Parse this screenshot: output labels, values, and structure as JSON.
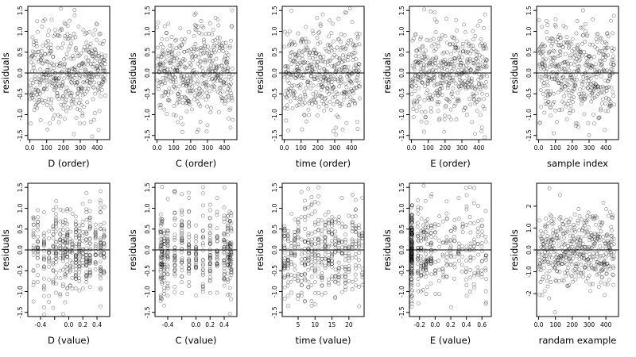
{
  "chart_data": [
    {
      "type": "scatter",
      "xlabel": "D (order)",
      "ylabel": "residuals",
      "xlim": [
        -12,
        475
      ],
      "ylim": [
        -1.6,
        1.6
      ],
      "xticks": [
        0,
        100,
        200,
        300,
        400
      ],
      "yticks": [
        -1.5,
        -1.0,
        -0.5,
        0.0,
        0.5,
        1.0,
        1.5
      ],
      "reference_line": 0,
      "pattern": "order",
      "n": 450,
      "seed": 11
    },
    {
      "type": "scatter",
      "xlabel": "C (order)",
      "ylabel": "residuals",
      "xlim": [
        -12,
        475
      ],
      "ylim": [
        -1.6,
        1.6
      ],
      "xticks": [
        0,
        100,
        200,
        300,
        400
      ],
      "yticks": [
        -1.5,
        -1.0,
        -0.5,
        0.0,
        0.5,
        1.0,
        1.5
      ],
      "reference_line": 0,
      "pattern": "order",
      "n": 450,
      "seed": 23
    },
    {
      "type": "scatter",
      "xlabel": "time (order)",
      "ylabel": "residuals",
      "xlim": [
        -12,
        475
      ],
      "ylim": [
        -1.6,
        1.6
      ],
      "xticks": [
        0,
        100,
        200,
        300,
        400
      ],
      "yticks": [
        -1.5,
        -1.0,
        -0.5,
        0.0,
        0.5,
        1.0,
        1.5
      ],
      "reference_line": 0,
      "pattern": "order",
      "n": 450,
      "seed": 37
    },
    {
      "type": "scatter",
      "xlabel": "E (order)",
      "ylabel": "residuals",
      "xlim": [
        -12,
        475
      ],
      "ylim": [
        -1.6,
        1.6
      ],
      "xticks": [
        0,
        100,
        200,
        300,
        400
      ],
      "yticks": [
        -1.5,
        -1.0,
        -0.5,
        0.0,
        0.5,
        1.0,
        1.5
      ],
      "reference_line": 0,
      "pattern": "order",
      "n": 450,
      "seed": 41
    },
    {
      "type": "scatter",
      "xlabel": "sample index",
      "ylabel": "residuals",
      "xlim": [
        -12,
        475
      ],
      "ylim": [
        -1.6,
        1.6
      ],
      "xticks": [
        0,
        100,
        200,
        300,
        400
      ],
      "yticks": [
        -1.5,
        -1.0,
        -0.5,
        0.0,
        0.5,
        1.0,
        1.5
      ],
      "reference_line": 0,
      "pattern": "order",
      "n": 450,
      "seed": 53
    },
    {
      "type": "scatter",
      "xlabel": "D (value)",
      "ylabel": "residuals",
      "xlim": [
        -0.58,
        0.58
      ],
      "ylim": [
        -1.6,
        1.6
      ],
      "xticks": [
        -0.4,
        -0.2,
        0.0,
        0.2,
        0.4
      ],
      "xtick_labels": [
        "-0.4",
        "",
        "0.0",
        "0.2",
        "0.4"
      ],
      "yticks": [
        -1.5,
        -1.0,
        -0.5,
        0.0,
        0.5,
        1.0,
        1.5
      ],
      "reference_line": 0,
      "pattern": "clustered",
      "clusters": [
        -0.5,
        -0.44,
        -0.35,
        -0.28,
        -0.22,
        -0.18,
        -0.12,
        -0.08,
        -0.05,
        -0.02,
        0.02,
        0.05,
        0.1,
        0.15,
        0.2,
        0.25,
        0.3,
        0.38,
        0.45,
        0.5
      ],
      "n": 450,
      "seed": 61
    },
    {
      "type": "scatter",
      "xlabel": "C (value)",
      "ylabel": "residuals",
      "xlim": [
        -0.58,
        0.58
      ],
      "ylim": [
        -1.6,
        1.6
      ],
      "xticks": [
        -0.4,
        -0.2,
        0.0,
        0.2,
        0.4
      ],
      "xtick_labels": [
        "-0.4",
        "",
        "0.0",
        "0.2",
        "0.4"
      ],
      "yticks": [
        -1.5,
        -1.0,
        -0.5,
        0.0,
        0.5,
        1.0,
        1.5
      ],
      "reference_line": 0,
      "pattern": "clustered",
      "clusters": [
        -0.5,
        -0.48,
        -0.45,
        -0.4,
        -0.3,
        -0.2,
        -0.1,
        0.0,
        0.1,
        0.2,
        0.3,
        0.4,
        0.45,
        0.48,
        0.5
      ],
      "n": 450,
      "seed": 71
    },
    {
      "type": "scatter",
      "xlabel": "time (value)",
      "ylabel": "residuals",
      "xlim": [
        0.3,
        24.5
      ],
      "ylim": [
        -1.6,
        1.6
      ],
      "xticks": [
        5,
        10,
        15,
        20
      ],
      "yticks": [
        -1.5,
        -1.0,
        -0.5,
        0.0,
        0.5,
        1.0,
        1.5
      ],
      "reference_line": 0,
      "pattern": "clustered",
      "clusters": [
        1,
        2,
        3,
        4,
        5,
        6,
        7,
        8,
        9,
        10,
        11,
        12,
        13,
        14,
        15,
        16,
        17,
        18,
        19,
        20,
        21,
        22,
        23,
        24
      ],
      "n": 450,
      "seed": 83
    },
    {
      "type": "scatter",
      "xlabel": "E (value)",
      "ylabel": "residuals",
      "xlim": [
        -0.33,
        0.72
      ],
      "ylim": [
        -1.6,
        1.6
      ],
      "xticks": [
        -0.2,
        0.0,
        0.2,
        0.4,
        0.6
      ],
      "yticks": [
        -1.5,
        -1.0,
        -0.5,
        0.0,
        0.5,
        1.0,
        1.5
      ],
      "reference_line": 0,
      "pattern": "skewed",
      "clusters": [
        -0.3,
        -0.3,
        -0.3,
        -0.22,
        -0.18,
        -0.15,
        -0.12,
        -0.1,
        -0.05,
        0.0,
        0.05,
        0.1,
        0.15,
        0.2,
        0.25,
        0.3,
        0.35,
        0.4,
        0.45,
        0.5,
        0.55,
        0.6,
        0.65
      ],
      "n": 450,
      "seed": 97
    },
    {
      "type": "scatter",
      "xlabel": "randam example",
      "ylabel": "residuals",
      "xlim": [
        -12,
        475
      ],
      "ylim": [
        -3.05,
        3.05
      ],
      "xticks": [
        0,
        100,
        200,
        300,
        400
      ],
      "yticks": [
        -2,
        -1,
        0,
        1,
        2
      ],
      "reference_line": 0,
      "pattern": "order",
      "scale": 0.9,
      "n": 450,
      "seed": 107
    }
  ]
}
